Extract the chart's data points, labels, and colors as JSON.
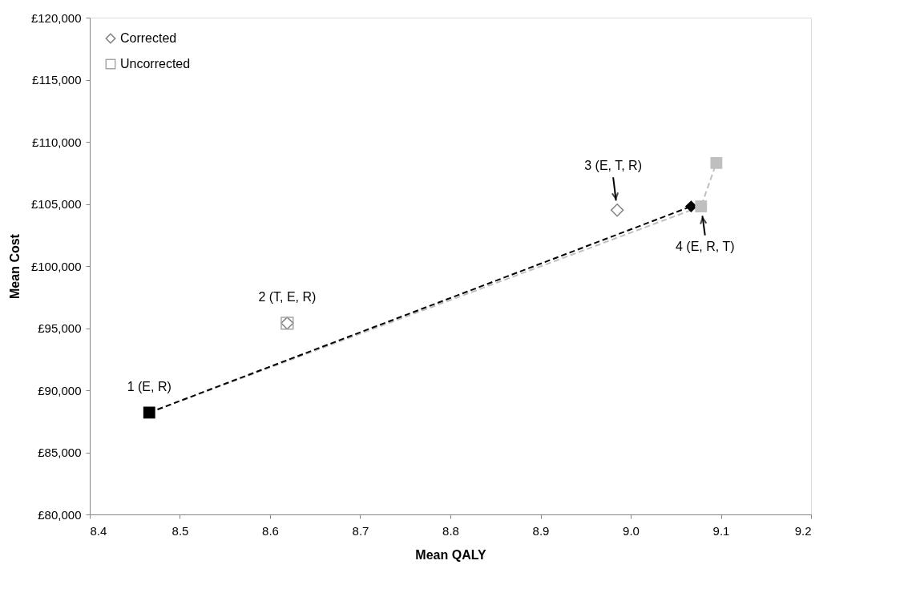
{
  "chart_data": {
    "type": "scatter",
    "xlabel": "Mean QALY",
    "ylabel": "Mean Cost",
    "xlim": [
      8.4,
      9.2
    ],
    "xticks": [
      {
        "value": 8.4,
        "label": "8.4"
      },
      {
        "value": 8.5,
        "label": "8.5"
      },
      {
        "value": 8.6,
        "label": "8.6"
      },
      {
        "value": 8.7,
        "label": "8.7"
      },
      {
        "value": 8.8,
        "label": "8.8"
      },
      {
        "value": 8.9,
        "label": "8.9"
      },
      {
        "value": 9.0,
        "label": "9.0"
      },
      {
        "value": 9.1,
        "label": "9.1"
      },
      {
        "value": 9.2,
        "label": "9.2"
      }
    ],
    "ylim": [
      80000,
      120000
    ],
    "yticks": [
      {
        "value": 80000,
        "label": "£80,000"
      },
      {
        "value": 85000,
        "label": "£85,000"
      },
      {
        "value": 90000,
        "label": "£90,000"
      },
      {
        "value": 95000,
        "label": "£95,000"
      },
      {
        "value": 100000,
        "label": "£100,000"
      },
      {
        "value": 105000,
        "label": "£105,000"
      },
      {
        "value": 110000,
        "label": "£110,000"
      },
      {
        "value": 115000,
        "label": "£115,000"
      },
      {
        "value": 120000,
        "label": "£120,000"
      }
    ],
    "grid": false,
    "legend": "top left",
    "series": [
      {
        "type": "line",
        "color": "#bfbfbf",
        "line_style": "dashed",
        "marker": "none",
        "x": [
          8.466,
          9.078,
          9.095
        ],
        "values": [
          88200,
          104800,
          108300
        ]
      },
      {
        "type": "line",
        "color": "#000000",
        "line_style": "dashed",
        "marker": "none",
        "x": [
          8.466,
          9.067
        ],
        "values": [
          88200,
          104800
        ]
      },
      {
        "name": "Corrected",
        "color": "#808080",
        "marker": "diamond",
        "x": [
          8.619,
          8.985
        ],
        "values": [
          95400,
          104500
        ]
      },
      {
        "name": "Uncorrected",
        "color": "#a6a6a6",
        "marker": "square",
        "x": [
          8.619
        ],
        "values": [
          95400
        ]
      },
      {
        "color": "#000000",
        "marker": "diamond",
        "x": [
          9.067
        ],
        "values": [
          104800
        ]
      },
      {
        "color": "#bfbfbf",
        "marker": "square",
        "x": [
          9.078,
          9.095
        ],
        "values": [
          104800,
          108300
        ]
      },
      {
        "color": "#000000",
        "marker": "square",
        "x": [
          8.466
        ],
        "values": [
          88200
        ]
      }
    ],
    "annotations": [
      {
        "text": "1 (E, R)",
        "x": 8.466,
        "y": 88200
      },
      {
        "text": "2 (T, E, R)",
        "x": 8.619,
        "y": 95400
      },
      {
        "text": "3 (E, T, R)",
        "x": 8.985,
        "y": 104500
      },
      {
        "text": "4 (E, R, T)",
        "x": 9.078,
        "y": 104800
      }
    ]
  }
}
